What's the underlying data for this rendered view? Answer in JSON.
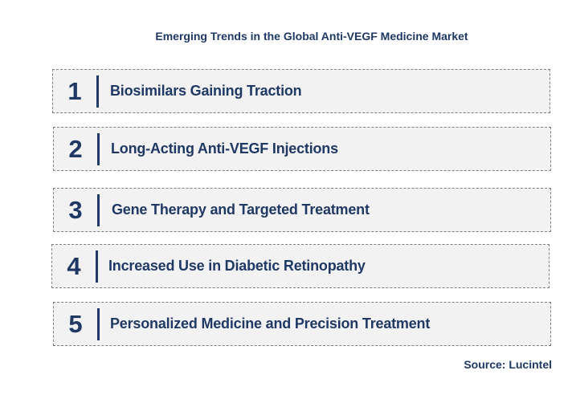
{
  "title": "Emerging Trends in the Global Anti-VEGF Medicine Market",
  "trends": [
    {
      "number": "1",
      "label": "Biosimilars Gaining Traction"
    },
    {
      "number": "2",
      "label": "Long-Acting Anti-VEGF Injections"
    },
    {
      "number": "3",
      "label": "Gene Therapy and Targeted Treatment"
    },
    {
      "number": "4",
      "label": "Increased Use in Diabetic Retinopathy"
    },
    {
      "number": "5",
      "label": "Personalized Medicine and Precision Treatment"
    }
  ],
  "source": "Source: Lucintel",
  "colors": {
    "text": "#1f3864",
    "box_fill": "#f2f2f2",
    "box_border": "#7f7f7f"
  }
}
